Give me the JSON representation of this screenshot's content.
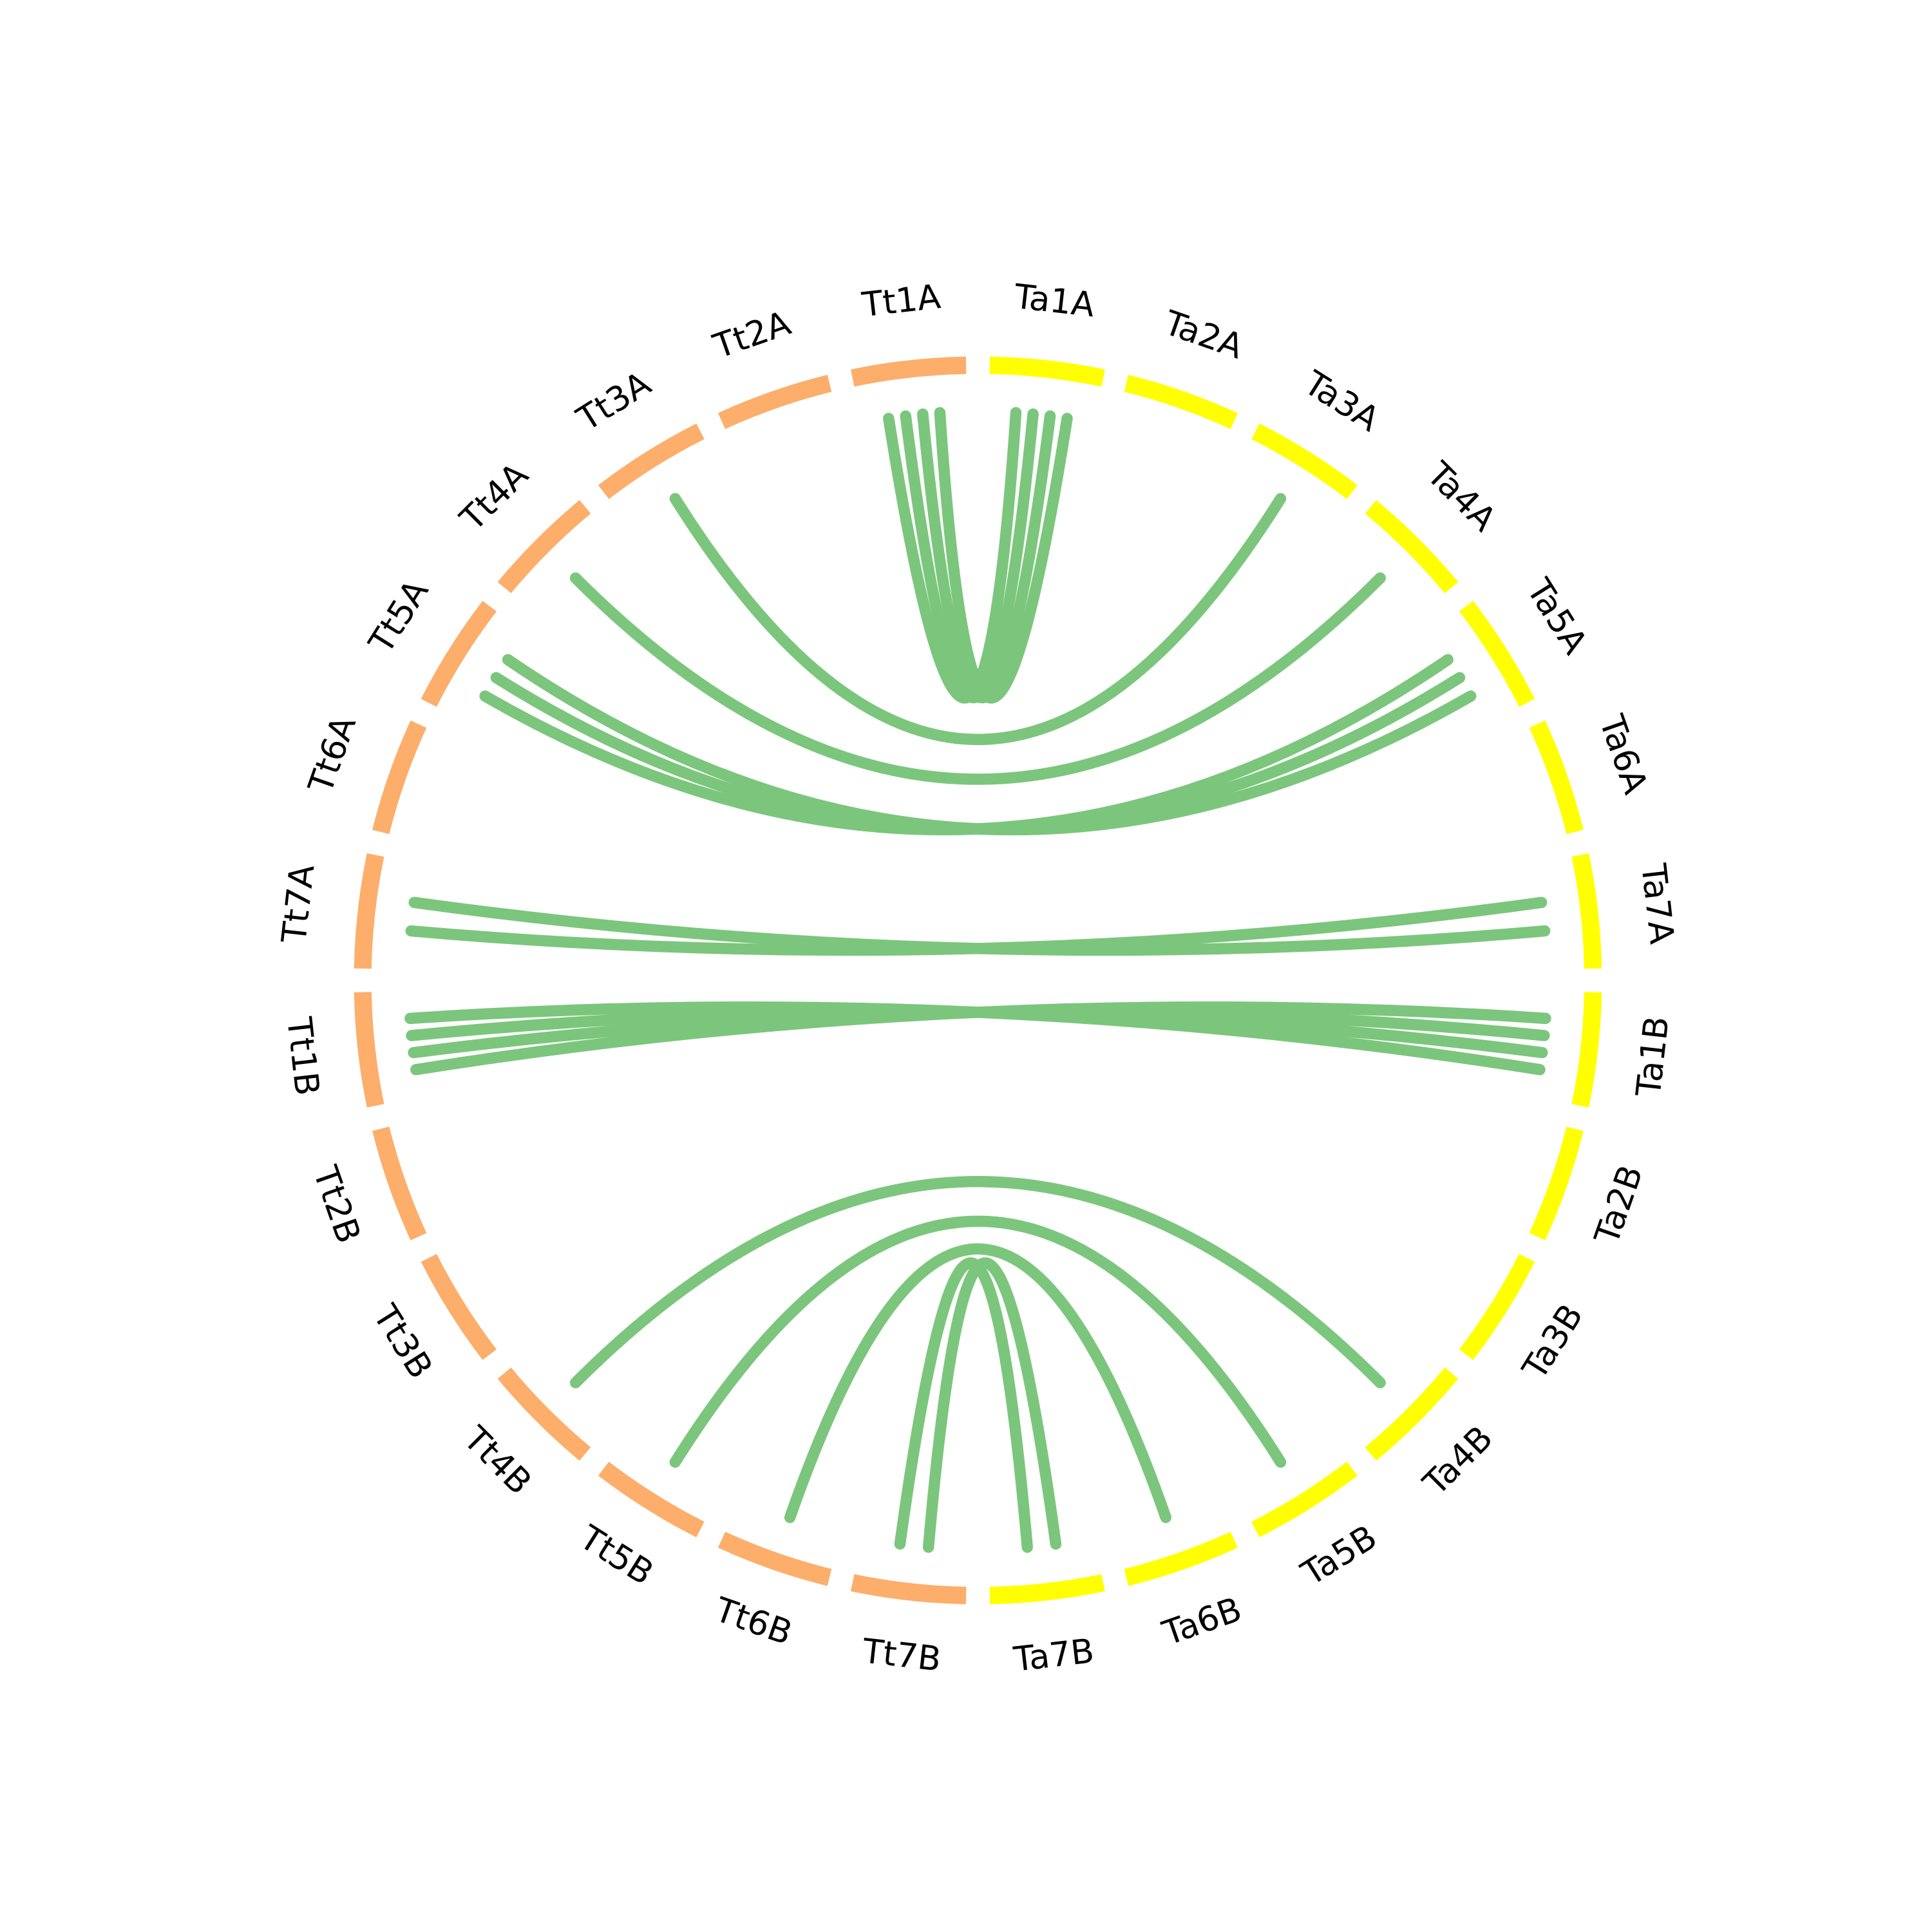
{
  "nodes": [
    {
      "label": "Ta1A",
      "color": "#ffff00"
    },
    {
      "label": "Ta2A",
      "color": "#ffff00"
    },
    {
      "label": "Ta3A",
      "color": "#ffff00"
    },
    {
      "label": "Ta4A",
      "color": "#ffff00"
    },
    {
      "label": "Ta5A",
      "color": "#ffff00"
    },
    {
      "label": "Ta6A",
      "color": "#ffff00"
    },
    {
      "label": "Ta7A",
      "color": "#ffff00"
    },
    {
      "label": "Ta1B",
      "color": "#ffff00"
    },
    {
      "label": "Ta2B",
      "color": "#ffff00"
    },
    {
      "label": "Ta3B",
      "color": "#ffff00"
    },
    {
      "label": "Ta4B",
      "color": "#ffff00"
    },
    {
      "label": "Ta5B",
      "color": "#ffff00"
    },
    {
      "label": "Ta6B",
      "color": "#ffff00"
    },
    {
      "label": "Ta7B",
      "color": "#ffff00"
    },
    {
      "label": "Tt7B",
      "color": "#fdae6b"
    },
    {
      "label": "Tt6B",
      "color": "#fdae6b"
    },
    {
      "label": "Tt5B",
      "color": "#fdae6b"
    },
    {
      "label": "Tt4B",
      "color": "#fdae6b"
    },
    {
      "label": "Tt3B",
      "color": "#fdae6b"
    },
    {
      "label": "Tt2B",
      "color": "#fdae6b"
    },
    {
      "label": "Tt1B",
      "color": "#fdae6b"
    },
    {
      "label": "Tt7A",
      "color": "#fdae6b"
    },
    {
      "label": "Tt6A",
      "color": "#fdae6b"
    },
    {
      "label": "Tt5A",
      "color": "#fdae6b"
    },
    {
      "label": "Tt4A",
      "color": "#fdae6b"
    },
    {
      "label": "Tt3A",
      "color": "#fdae6b"
    },
    {
      "label": "Tt2A",
      "color": "#fdae6b"
    },
    {
      "label": "Tt1A",
      "color": "#fdae6b"
    }
  ],
  "link_color": "#74c476",
  "links": [
    [
      27,
      0
    ],
    [
      27,
      0
    ],
    [
      27,
      0
    ],
    [
      27,
      0
    ],
    [
      25,
      2
    ],
    [
      24,
      3
    ],
    [
      23,
      4
    ],
    [
      23,
      4
    ],
    [
      23,
      4
    ],
    [
      21,
      6
    ],
    [
      21,
      6
    ],
    [
      20,
      7
    ],
    [
      20,
      7
    ],
    [
      20,
      7
    ],
    [
      20,
      7
    ],
    [
      17,
      10
    ],
    [
      16,
      11
    ],
    [
      15,
      12
    ],
    [
      14,
      13
    ],
    [
      14,
      13
    ]
  ]
}
